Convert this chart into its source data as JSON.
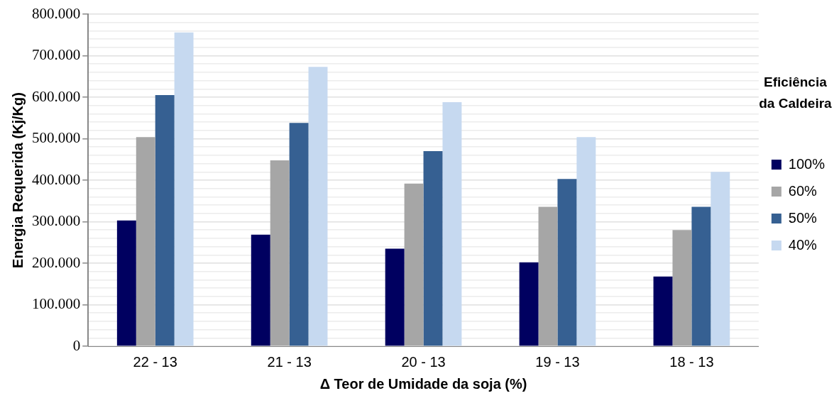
{
  "chart_data": {
    "type": "bar",
    "xlabel": "Δ Teor de Umidade da soja (%)",
    "ylabel": "Energia Requerida (Kj/Kg)",
    "legend_title": "Eficiência da Caldeira",
    "categories": [
      "22 - 13",
      "21 - 13",
      "20 - 13",
      "19 - 13",
      "18 - 13"
    ],
    "series": [
      {
        "name": "100%",
        "color": "#000060",
        "values": [
          303000,
          269000,
          235000,
          202000,
          168000
        ]
      },
      {
        "name": "60%",
        "color": "#a6a6a6",
        "values": [
          504000,
          448000,
          392000,
          336000,
          280000
        ]
      },
      {
        "name": "50%",
        "color": "#366092",
        "values": [
          605000,
          538000,
          470000,
          403000,
          336000
        ]
      },
      {
        "name": "40%",
        "color": "#c6d9f0",
        "values": [
          756000,
          673000,
          588000,
          504000,
          420000
        ]
      }
    ],
    "ylim": [
      0,
      800000
    ],
    "yticks": [
      0,
      {
        "value": 20000,
        "label": null
      },
      {
        "value": 40000,
        "label": null
      },
      {
        "value": 60000,
        "label": null
      },
      {
        "value": 80000,
        "label": null
      },
      {
        "value": 100000,
        "label": "100.000"
      },
      {
        "value": 120000,
        "label": null
      },
      {
        "value": 140000,
        "label": null
      },
      {
        "value": 160000,
        "label": null
      },
      {
        "value": 180000,
        "label": null
      },
      {
        "value": 200000,
        "label": "200.000"
      },
      {
        "value": 220000,
        "label": null
      },
      {
        "value": 240000,
        "label": null
      },
      {
        "value": 260000,
        "label": null
      },
      {
        "value": 280000,
        "label": null
      },
      {
        "value": 300000,
        "label": "300.000"
      },
      {
        "value": 320000,
        "label": null
      },
      {
        "value": 340000,
        "label": null
      },
      {
        "value": 360000,
        "label": null
      },
      {
        "value": 380000,
        "label": null
      },
      {
        "value": 400000,
        "label": "400.000"
      },
      {
        "value": 420000,
        "label": null
      },
      {
        "value": 440000,
        "label": null
      },
      {
        "value": 460000,
        "label": null
      },
      {
        "value": 480000,
        "label": null
      },
      {
        "value": 500000,
        "label": "500.000"
      },
      {
        "value": 520000,
        "label": null
      },
      {
        "value": 540000,
        "label": null
      },
      {
        "value": 560000,
        "label": null
      },
      {
        "value": 580000,
        "label": null
      },
      {
        "value": 600000,
        "label": "600.000"
      },
      {
        "value": 620000,
        "label": null
      },
      {
        "value": 640000,
        "label": null
      },
      {
        "value": 660000,
        "label": null
      },
      {
        "value": 680000,
        "label": null
      },
      {
        "value": 700000,
        "label": "700.000"
      },
      {
        "value": 720000,
        "label": null
      },
      {
        "value": 740000,
        "label": null
      },
      {
        "value": 760000,
        "label": null
      },
      {
        "value": 780000,
        "label": null
      },
      {
        "value": 800000,
        "label": "800.000"
      }
    ],
    "grid": "y",
    "legend": "right"
  }
}
